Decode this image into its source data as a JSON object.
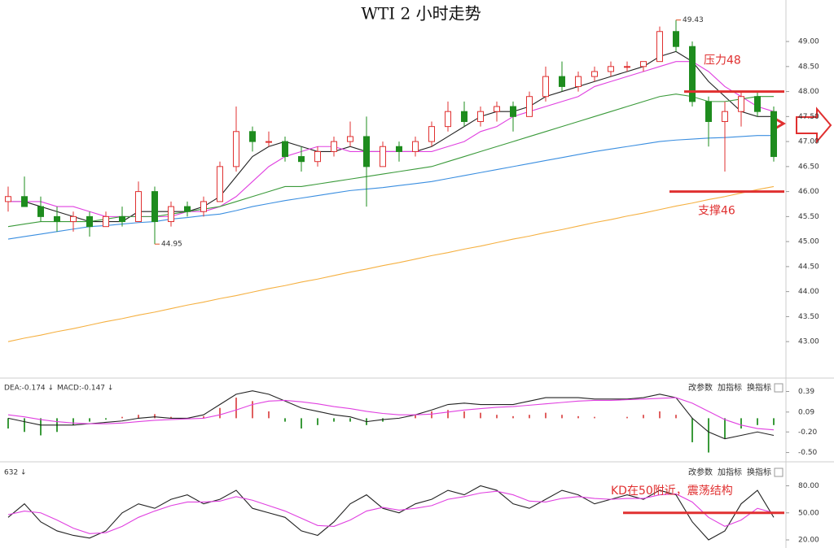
{
  "chart_data": [
    {
      "type": "candlestick",
      "title": "WTI 2 小时走势",
      "open": [
        45.8,
        45.9,
        45.7,
        45.5,
        45.4,
        45.5,
        45.3,
        45.5,
        45.4,
        46.0,
        45.4,
        45.7,
        45.6,
        45.8,
        46.5,
        47.2,
        47.0,
        47.0,
        46.7,
        46.6,
        46.8,
        47.0,
        47.1,
        46.5,
        46.9,
        46.8,
        47.0,
        47.3,
        47.6,
        47.4,
        47.6,
        47.7,
        47.5,
        47.9,
        48.3,
        48.1,
        48.3,
        48.4,
        48.5,
        48.5,
        48.6,
        49.2,
        48.9,
        47.8,
        47.4,
        47.6,
        47.9,
        47.6
      ],
      "high": [
        46.1,
        46.3,
        45.9,
        45.7,
        45.6,
        45.6,
        45.6,
        45.7,
        46.2,
        46.1,
        45.8,
        45.8,
        45.9,
        46.6,
        47.7,
        47.3,
        47.2,
        47.1,
        46.9,
        46.9,
        47.1,
        47.4,
        47.5,
        47.0,
        47.0,
        47.1,
        47.4,
        47.8,
        47.8,
        47.7,
        47.8,
        47.8,
        48.0,
        48.5,
        48.6,
        48.4,
        48.5,
        48.6,
        48.6,
        48.6,
        49.3,
        49.43,
        49.0,
        47.9,
        47.8,
        48.0,
        48.0,
        47.7
      ],
      "low": [
        45.6,
        45.7,
        45.4,
        45.2,
        45.2,
        45.1,
        45.3,
        45.3,
        45.4,
        44.95,
        45.3,
        45.5,
        45.5,
        45.8,
        46.4,
        46.8,
        46.9,
        46.6,
        46.4,
        46.5,
        46.7,
        46.9,
        45.7,
        46.5,
        46.6,
        46.7,
        46.9,
        47.2,
        47.3,
        47.3,
        47.4,
        47.2,
        47.5,
        47.8,
        48.0,
        48.0,
        48.2,
        48.3,
        48.4,
        48.4,
        48.6,
        48.8,
        47.7,
        46.9,
        46.4,
        47.3,
        47.5,
        46.6
      ],
      "close": [
        45.9,
        45.7,
        45.5,
        45.4,
        45.5,
        45.3,
        45.5,
        45.4,
        46.0,
        45.4,
        45.7,
        45.6,
        45.8,
        46.5,
        47.2,
        47.0,
        47.0,
        46.7,
        46.6,
        46.8,
        47.0,
        47.1,
        46.5,
        46.9,
        46.8,
        47.0,
        47.3,
        47.6,
        47.4,
        47.6,
        47.7,
        47.5,
        47.9,
        48.3,
        48.1,
        48.3,
        48.4,
        48.5,
        48.5,
        48.6,
        49.2,
        48.9,
        47.8,
        47.4,
        47.6,
        47.9,
        47.6,
        46.7
      ],
      "up_color": "#e03030",
      "down_color": "#1e8c1e",
      "series": [
        {
          "color": "#222222",
          "values": [
            45.8,
            45.8,
            45.7,
            45.6,
            45.5,
            45.4,
            45.4,
            45.4,
            45.6,
            45.6,
            45.6,
            45.6,
            45.7,
            45.9,
            46.3,
            46.7,
            46.9,
            47.0,
            46.9,
            46.8,
            46.8,
            46.9,
            46.8,
            46.8,
            46.8,
            46.8,
            46.9,
            47.1,
            47.3,
            47.5,
            47.6,
            47.6,
            47.7,
            47.9,
            48.0,
            48.1,
            48.2,
            48.3,
            48.4,
            48.5,
            48.7,
            48.8,
            48.6,
            48.2,
            47.9,
            47.6,
            47.5,
            47.5
          ]
        },
        {
          "color": "#e040e0",
          "values": [
            45.8,
            45.8,
            45.8,
            45.7,
            45.7,
            45.6,
            45.5,
            45.5,
            45.5,
            45.5,
            45.5,
            45.6,
            45.6,
            45.7,
            45.9,
            46.2,
            46.5,
            46.7,
            46.8,
            46.9,
            46.9,
            46.8,
            46.8,
            46.8,
            46.8,
            46.8,
            46.8,
            46.9,
            47.0,
            47.2,
            47.3,
            47.5,
            47.6,
            47.7,
            47.8,
            47.9,
            48.1,
            48.2,
            48.3,
            48.4,
            48.5,
            48.6,
            48.6,
            48.4,
            48.1,
            47.9,
            47.7,
            47.6
          ]
        },
        {
          "color": "#3a9a3a",
          "values": [
            45.3,
            45.35,
            45.4,
            45.4,
            45.4,
            45.4,
            45.45,
            45.5,
            45.5,
            45.5,
            45.55,
            45.6,
            45.65,
            45.7,
            45.8,
            45.9,
            46.0,
            46.1,
            46.1,
            46.15,
            46.2,
            46.25,
            46.3,
            46.35,
            46.4,
            46.45,
            46.5,
            46.6,
            46.7,
            46.8,
            46.9,
            47.0,
            47.1,
            47.2,
            47.3,
            47.4,
            47.5,
            47.6,
            47.7,
            47.8,
            47.9,
            47.95,
            47.9,
            47.8,
            47.8,
            47.85,
            47.9,
            47.9
          ]
        },
        {
          "color": "#3a8ee0",
          "values": [
            45.05,
            45.1,
            45.15,
            45.2,
            45.25,
            45.3,
            45.32,
            45.35,
            45.38,
            45.4,
            45.45,
            45.48,
            45.52,
            45.55,
            45.62,
            45.7,
            45.76,
            45.82,
            45.87,
            45.92,
            45.97,
            46.02,
            46.05,
            46.08,
            46.12,
            46.16,
            46.2,
            46.26,
            46.32,
            46.38,
            46.44,
            46.5,
            46.56,
            46.62,
            46.68,
            46.74,
            46.8,
            46.85,
            46.9,
            46.95,
            47.0,
            47.03,
            47.05,
            47.07,
            47.08,
            47.1,
            47.12,
            47.12
          ]
        },
        {
          "color": "#f5b041",
          "values": [
            43.0,
            43.07,
            43.13,
            43.2,
            43.26,
            43.33,
            43.4,
            43.46,
            43.53,
            43.59,
            43.66,
            43.73,
            43.79,
            43.86,
            43.92,
            43.99,
            44.06,
            44.12,
            44.19,
            44.25,
            44.32,
            44.39,
            44.45,
            44.52,
            44.58,
            44.65,
            44.72,
            44.78,
            44.85,
            44.91,
            44.98,
            45.05,
            45.11,
            45.18,
            45.24,
            45.31,
            45.38,
            45.44,
            45.51,
            45.57,
            45.64,
            45.71,
            45.77,
            45.84,
            45.9,
            45.97,
            46.04,
            46.1
          ]
        }
      ],
      "low_label": "44.95",
      "high_label": "49.43",
      "levels": [
        {
          "value": 48,
          "label": "压力48",
          "color": "#e03030"
        },
        {
          "value": 46,
          "label": "支撑46",
          "color": "#e03030"
        }
      ],
      "ylim": [
        42.32,
        49.83
      ],
      "yticks": [
        {
          "value": 43,
          "label": "43.00"
        },
        {
          "value": 43.5,
          "label": "43.50"
        },
        {
          "value": 44,
          "label": "44.00"
        },
        {
          "value": 44.5,
          "label": "44.50"
        },
        {
          "value": 45,
          "label": "45.00"
        },
        {
          "value": 45.5,
          "label": "45.50"
        },
        {
          "value": 46,
          "label": "46.00"
        },
        {
          "value": 46.5,
          "label": "46.50"
        },
        {
          "value": 47,
          "label": "47.00"
        },
        {
          "value": 47.5,
          "label": "47.50"
        },
        {
          "value": 48,
          "label": "48.00"
        },
        {
          "value": 48.5,
          "label": "48.50"
        },
        {
          "value": 49,
          "label": "49.00"
        }
      ]
    },
    {
      "type": "macd",
      "header": [
        "DEA:-0.174 ↓",
        "MACD:-0.147 ↓"
      ],
      "buttons": [
        "改参数",
        "加指标",
        "换指标"
      ],
      "histogram": [
        -0.15,
        -0.2,
        -0.25,
        -0.2,
        -0.1,
        -0.05,
        -0.02,
        0.02,
        0.05,
        0.06,
        0.02,
        0.0,
        0.03,
        0.15,
        0.3,
        0.25,
        0.1,
        -0.05,
        -0.15,
        -0.1,
        -0.05,
        -0.05,
        -0.1,
        -0.05,
        0.0,
        0.05,
        0.1,
        0.12,
        0.1,
        0.08,
        0.05,
        0.03,
        0.05,
        0.08,
        0.05,
        0.03,
        0.02,
        0.0,
        0.02,
        0.05,
        0.1,
        0.05,
        -0.35,
        -0.5,
        -0.3,
        -0.15,
        -0.1,
        -0.1
      ],
      "up_color": "#e06060",
      "down_color": "#3a9a3a",
      "series": [
        {
          "color": "#222222",
          "values": [
            0.0,
            -0.05,
            -0.1,
            -0.1,
            -0.1,
            -0.08,
            -0.06,
            -0.04,
            0.0,
            0.02,
            0.0,
            0.0,
            0.05,
            0.2,
            0.35,
            0.4,
            0.35,
            0.25,
            0.15,
            0.1,
            0.05,
            0.02,
            -0.05,
            -0.02,
            0.0,
            0.05,
            0.12,
            0.2,
            0.22,
            0.2,
            0.2,
            0.2,
            0.25,
            0.3,
            0.3,
            0.3,
            0.28,
            0.28,
            0.28,
            0.3,
            0.35,
            0.3,
            0.0,
            -0.2,
            -0.3,
            -0.25,
            -0.2,
            -0.25
          ]
        },
        {
          "color": "#e040e0",
          "values": [
            0.05,
            0.02,
            -0.02,
            -0.05,
            -0.07,
            -0.08,
            -0.08,
            -0.07,
            -0.05,
            -0.03,
            -0.02,
            -0.01,
            0.0,
            0.05,
            0.12,
            0.2,
            0.25,
            0.26,
            0.24,
            0.21,
            0.17,
            0.14,
            0.1,
            0.07,
            0.05,
            0.05,
            0.06,
            0.09,
            0.12,
            0.14,
            0.16,
            0.17,
            0.19,
            0.21,
            0.23,
            0.25,
            0.26,
            0.26,
            0.27,
            0.28,
            0.29,
            0.3,
            0.22,
            0.1,
            -0.02,
            -0.1,
            -0.15,
            -0.17
          ]
        }
      ],
      "ylim": [
        -0.6,
        0.55
      ],
      "yticks": [
        0.39,
        0.09,
        {
          "value": -0.2,
          "label": "-0.20"
        },
        {
          "value": -0.5,
          "label": "-0.50"
        }
      ]
    },
    {
      "type": "kd",
      "header": [
        "632 ↓"
      ],
      "buttons": [
        "改参数",
        "加指标",
        "换指标"
      ],
      "series": [
        {
          "color": "#222222",
          "values": [
            45,
            60,
            40,
            30,
            25,
            22,
            30,
            50,
            60,
            55,
            65,
            70,
            60,
            65,
            75,
            55,
            50,
            45,
            30,
            25,
            40,
            60,
            70,
            55,
            50,
            60,
            65,
            75,
            70,
            80,
            75,
            60,
            55,
            65,
            75,
            70,
            60,
            65,
            70,
            65,
            75,
            70,
            40,
            20,
            30,
            60,
            75,
            45
          ]
        },
        {
          "color": "#e040e0",
          "values": [
            48,
            52,
            50,
            42,
            33,
            27,
            28,
            35,
            45,
            52,
            58,
            62,
            62,
            63,
            68,
            64,
            58,
            52,
            44,
            36,
            35,
            42,
            52,
            56,
            53,
            55,
            58,
            65,
            68,
            72,
            74,
            70,
            63,
            62,
            66,
            68,
            66,
            65,
            66,
            66,
            70,
            71,
            62,
            45,
            35,
            42,
            55,
            50
          ]
        }
      ],
      "levels": [
        {
          "value": 50,
          "label": "KD在50附近，震荡结构",
          "color": "#e03030"
        }
      ],
      "ylim": [
        11,
        103
      ],
      "yticks": [
        {
          "value": 80,
          "label": "80.00"
        },
        {
          "value": 50,
          "label": "50.00"
        },
        {
          "value": 20,
          "label": "20.00"
        }
      ]
    }
  ]
}
